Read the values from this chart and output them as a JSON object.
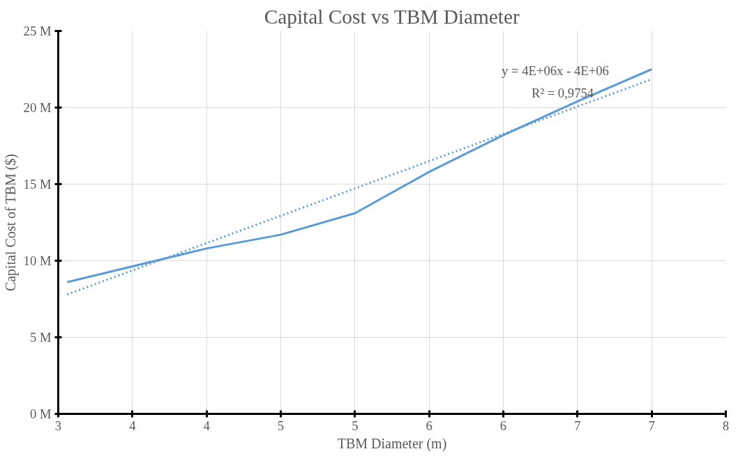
{
  "chart_data": {
    "type": "line",
    "title": "Capital Cost vs TBM Diameter",
    "xlabel": "TBM Diameter (m)",
    "ylabel": "Capital Cost of TBM ($)",
    "x": [
      3.06,
      4.0,
      4.5,
      5.0,
      5.5,
      6.0,
      6.5,
      7.0
    ],
    "series": [
      {
        "color": "#5b9bd5",
        "values": [
          8600000,
          10800000,
          11700000,
          13100000,
          15800000,
          18200000,
          20400000,
          22500000
        ],
        "line_style": "solid"
      },
      {
        "type": "line",
        "color": "#5b9bd5",
        "x": [
          3.06,
          7.0
        ],
        "values": [
          7800000,
          21850000
        ],
        "line_style": "dotted"
      }
    ],
    "xlim": [
      3,
      7.5
    ],
    "xticks": [
      {
        "value": 3,
        "label": "3"
      },
      {
        "value": 3.5,
        "label": "4"
      },
      {
        "value": 4,
        "label": "4"
      },
      {
        "value": 4.5,
        "label": "5"
      },
      {
        "value": 5,
        "label": "5"
      },
      {
        "value": 5.5,
        "label": "6"
      },
      {
        "value": 6,
        "label": "6"
      },
      {
        "value": 6.5,
        "label": "7"
      },
      {
        "value": 7,
        "label": "7"
      },
      {
        "value": 7.5,
        "label": "8"
      }
    ],
    "ylim": [
      0,
      25000000
    ],
    "yticks": [
      {
        "value": 0,
        "label": "0 M"
      },
      {
        "value": 5000000,
        "label": "5 M"
      },
      {
        "value": 10000000,
        "label": "10 M"
      },
      {
        "value": 15000000,
        "label": "15 M"
      },
      {
        "value": 20000000,
        "label": "20 M"
      },
      {
        "value": 25000000,
        "label": "25 M"
      }
    ],
    "grid": true,
    "marker": "none",
    "annotations": [
      "y = 4E+06x - 4E+06",
      "R² = 0,9754"
    ]
  }
}
